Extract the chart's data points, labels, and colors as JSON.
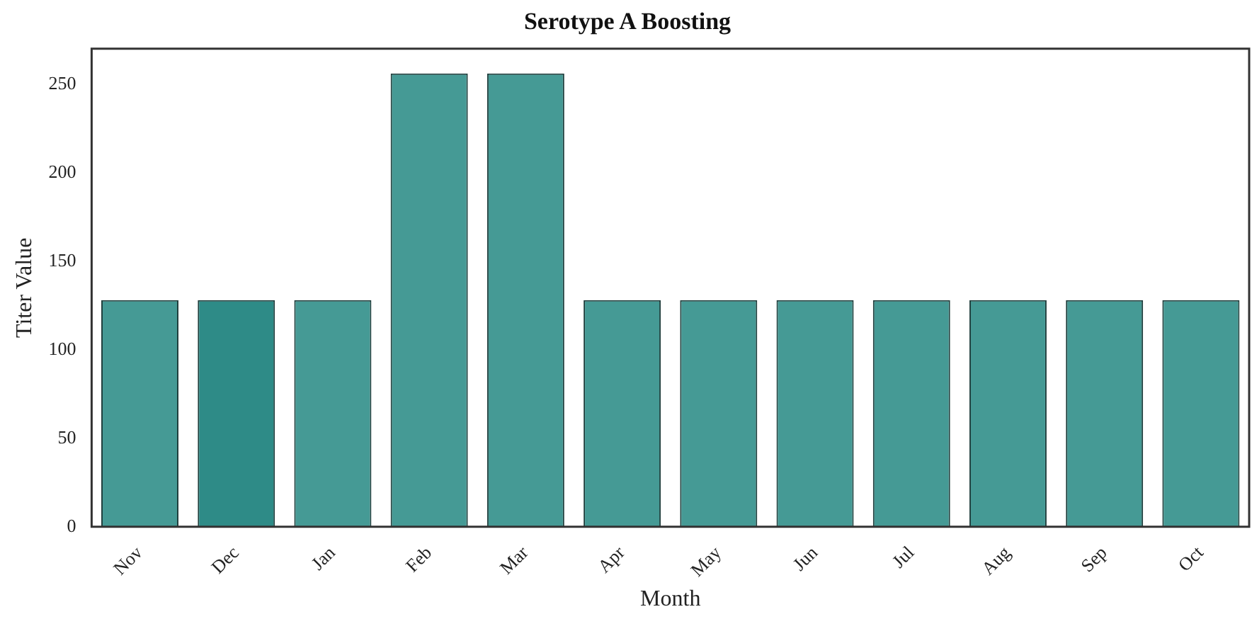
{
  "chart_data": {
    "type": "bar",
    "title": "Serotype A Boosting",
    "xlabel": "Month",
    "ylabel": "Titer Value",
    "categories": [
      "Nov",
      "Dec",
      "Jan",
      "Feb",
      "Mar",
      "Apr",
      "May",
      "Jun",
      "Jul",
      "Aug",
      "Sep",
      "Oct"
    ],
    "values": [
      128,
      128,
      128,
      256,
      256,
      128,
      128,
      128,
      128,
      128,
      128,
      128
    ],
    "colors": [
      "#459a95",
      "#2e8b87",
      "#459a95",
      "#459a95",
      "#459a95",
      "#459a95",
      "#459a95",
      "#459a95",
      "#459a95",
      "#459a95",
      "#459a95",
      "#459a95"
    ],
    "ylim": [
      0,
      270
    ],
    "yticks": [
      0,
      50,
      100,
      150,
      200,
      250
    ],
    "grid": false,
    "legend": false
  }
}
